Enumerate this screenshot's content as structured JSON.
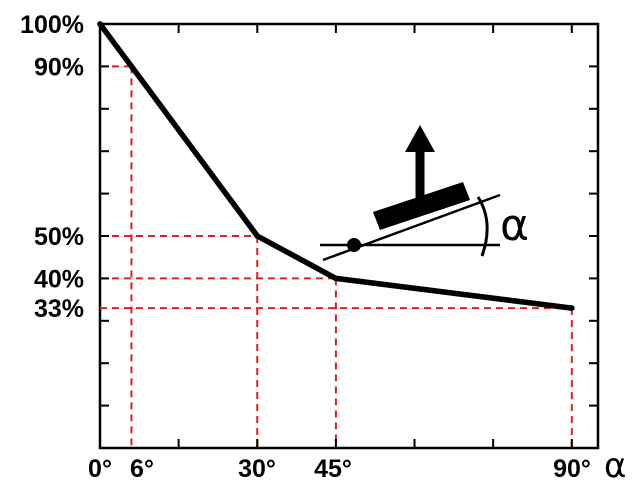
{
  "chart_data": {
    "type": "line",
    "x": [
      0,
      6,
      30,
      45,
      90
    ],
    "values": [
      100,
      90,
      50,
      40,
      33
    ],
    "xlim": [
      0,
      95
    ],
    "ylim": [
      0,
      100
    ],
    "x_ticks": [
      0,
      6,
      30,
      45,
      90
    ],
    "x_tick_labels": [
      "0°",
      "6°",
      "30°",
      "45°",
      "90°"
    ],
    "y_ticks": [
      100,
      90,
      50,
      40,
      33
    ],
    "y_tick_labels": [
      "100%",
      "90%",
      "50%",
      "40%",
      "33%"
    ],
    "xlabel": "α",
    "inset_label": "α",
    "grid": false,
    "colors": {
      "curve": "#000000",
      "guides": "#e02020",
      "axes": "#000000"
    }
  }
}
